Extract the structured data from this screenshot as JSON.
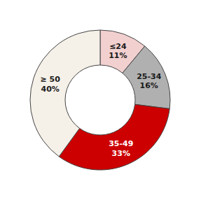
{
  "chart_data": {
    "type": "pie",
    "categories": [
      "≤24",
      "25-34",
      "35-49",
      "≥ 50"
    ],
    "values": [
      11,
      16,
      33,
      40
    ],
    "value_labels": [
      "11%",
      "16%",
      "33%",
      "40%"
    ],
    "colors": [
      "#f2d0d0",
      "#b0b0b0",
      "#cc0000",
      "#f5f0e8"
    ],
    "data_labels": true
  }
}
